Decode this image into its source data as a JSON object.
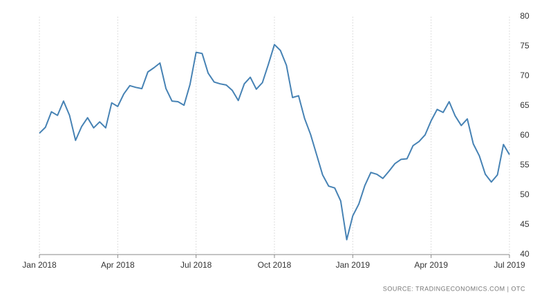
{
  "chart_data": {
    "type": "line",
    "categories": [
      "Jan 2018",
      null,
      null,
      null,
      null,
      null,
      null,
      null,
      null,
      null,
      null,
      null,
      null,
      "Apr 2018",
      null,
      null,
      null,
      null,
      null,
      null,
      null,
      null,
      null,
      null,
      null,
      null,
      "Jul 2018",
      null,
      null,
      null,
      null,
      null,
      null,
      null,
      null,
      null,
      null,
      null,
      null,
      "Oct 2018",
      null,
      null,
      null,
      null,
      null,
      null,
      null,
      null,
      null,
      null,
      null,
      null,
      "Jan 2019",
      null,
      null,
      null,
      null,
      null,
      null,
      null,
      null,
      null,
      null,
      null,
      null,
      "Apr 2019",
      null,
      null,
      null,
      null,
      null,
      null,
      null,
      null,
      null,
      null,
      null,
      null,
      "Jul 2019"
    ],
    "series": [
      {
        "color": "#4682b4",
        "values": [
          60.4,
          61.4,
          64.0,
          63.4,
          65.8,
          63.4,
          59.2,
          61.5,
          63.0,
          61.3,
          62.3,
          61.3,
          65.5,
          64.9,
          67.0,
          68.4,
          68.1,
          67.9,
          70.7,
          71.4,
          72.2,
          67.9,
          65.8,
          65.7,
          65.1,
          68.6,
          74.0,
          73.8,
          70.5,
          69.0,
          68.7,
          68.5,
          67.6,
          65.9,
          68.7,
          69.8,
          67.8,
          68.9,
          72.0,
          75.3,
          74.3,
          71.8,
          66.4,
          66.7,
          62.9,
          60.2,
          56.8,
          53.4,
          51.5,
          51.2,
          49.0,
          42.5,
          46.5,
          48.5,
          51.6,
          53.8,
          53.5,
          52.8,
          54.0,
          55.3,
          56.0,
          56.1,
          58.3,
          59.0,
          60.1,
          62.5,
          64.4,
          63.9,
          65.7,
          63.3,
          61.7,
          62.8,
          58.6,
          56.6,
          53.5,
          52.2,
          53.4,
          58.5,
          56.8
        ]
      }
    ],
    "ylim": [
      40,
      80
    ],
    "yticks": [
      40,
      45,
      50,
      55,
      60,
      65,
      70,
      75,
      80
    ],
    "source": "SOURCE: TRADINGECONOMICS.COM | OTC"
  }
}
